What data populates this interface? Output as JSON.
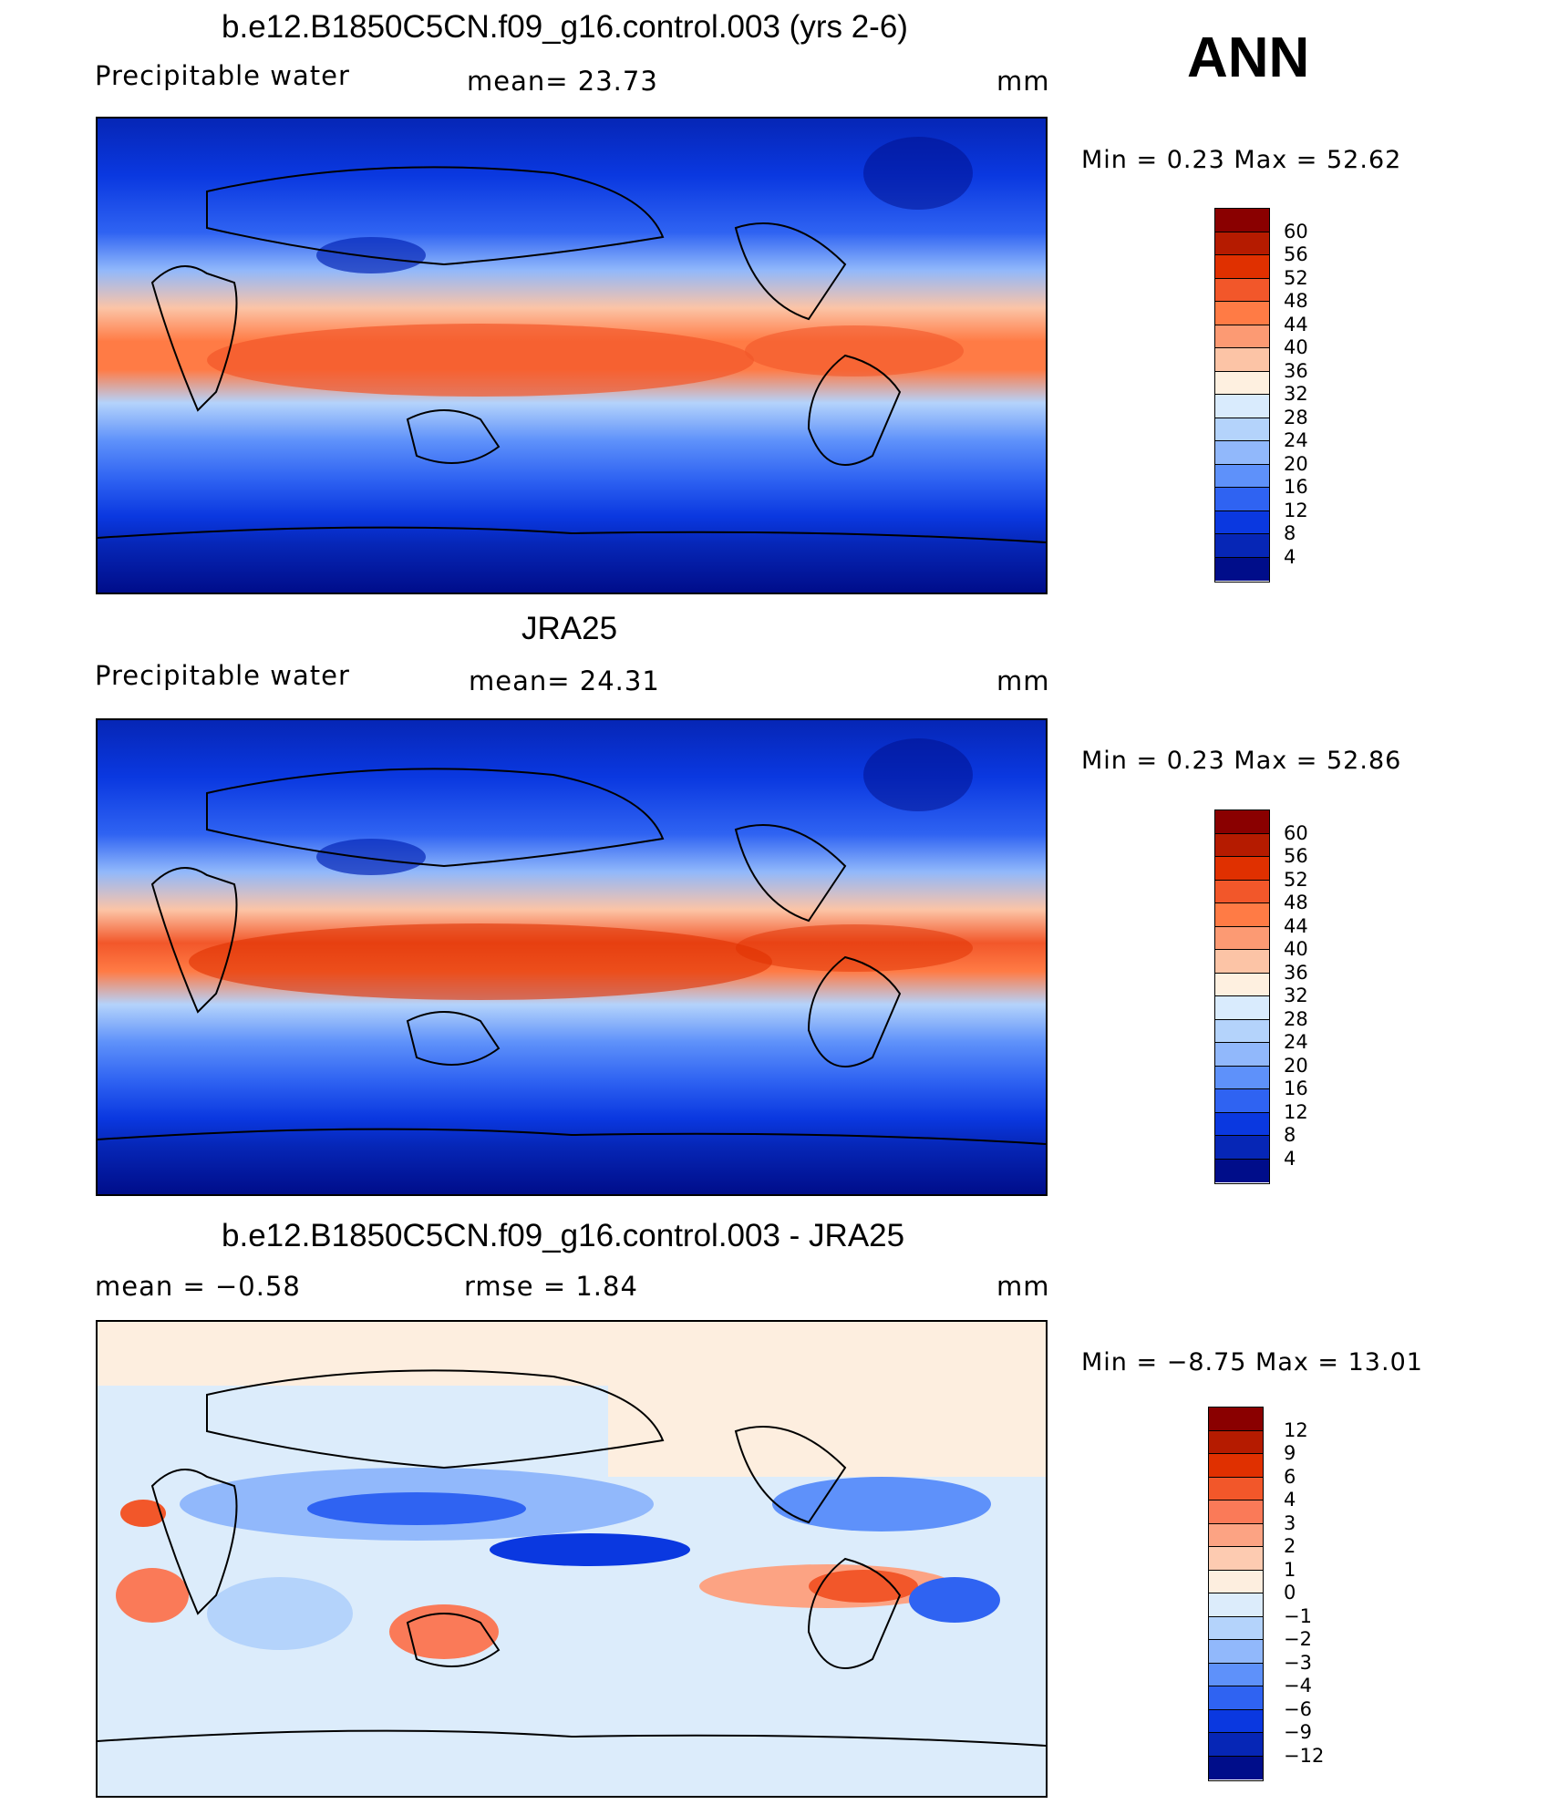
{
  "season": "ANN",
  "panels": [
    {
      "id": "model",
      "title": "b.e12.B1850C5CN.f09_g16.control.003 (yrs 2-6)",
      "left_label": "Precipitable  water",
      "center_label": "mean=   23.73",
      "units": "mm",
      "minmax": "Min  =     0.23  Max  =    52.62",
      "colorbar": {
        "levels": [
          "60",
          "56",
          "52",
          "48",
          "44",
          "40",
          "36",
          "32",
          "28",
          "24",
          "20",
          "16",
          "12",
          "8",
          "4"
        ],
        "colors": [
          "#8a0000",
          "#b51b00",
          "#e03000",
          "#f2572a",
          "#ff7b45",
          "#fc9a73",
          "#fcc4a6",
          "#fef0e0",
          "#d9ebfd",
          "#b4d3fb",
          "#91b8fb",
          "#5e91fa",
          "#2f63f2",
          "#0a38e0",
          "#0626b6",
          "#000d8a"
        ]
      }
    },
    {
      "id": "obs",
      "title": "JRA25",
      "left_label": "Precipitable  water",
      "center_label": "mean=   24.31",
      "units": "mm",
      "minmax": "Min  =     0.23  Max  =    52.86",
      "colorbar": {
        "levels": [
          "60",
          "56",
          "52",
          "48",
          "44",
          "40",
          "36",
          "32",
          "28",
          "24",
          "20",
          "16",
          "12",
          "8",
          "4"
        ],
        "colors": [
          "#8a0000",
          "#b51b00",
          "#e03000",
          "#f2572a",
          "#ff7b45",
          "#fc9a73",
          "#fcc4a6",
          "#fef0e0",
          "#d9ebfd",
          "#b4d3fb",
          "#91b8fb",
          "#5e91fa",
          "#2f63f2",
          "#0a38e0",
          "#0626b6",
          "#000d8a"
        ]
      }
    },
    {
      "id": "diff",
      "title": "b.e12.B1850C5CN.f09_g16.control.003 - JRA25",
      "left_label": "mean  =    −0.58",
      "center_label": "rmse  =     1.84",
      "units": "mm",
      "minmax": "Min  =    −8.75  Max  =    13.01",
      "colorbar": {
        "levels": [
          "12",
          "9",
          "6",
          "4",
          "3",
          "2",
          "1",
          "0",
          "−1",
          "−2",
          "−3",
          "−4",
          "−6",
          "−9",
          "−12"
        ],
        "colors": [
          "#8a0000",
          "#b51b00",
          "#e03000",
          "#f2572a",
          "#fa7a58",
          "#fca383",
          "#fdcbb1",
          "#fdeedf",
          "#dcecfb",
          "#b4d3fb",
          "#91b8fb",
          "#5e91fa",
          "#2f63f2",
          "#0a38e0",
          "#0626b6",
          "#000d8a"
        ]
      }
    }
  ]
}
